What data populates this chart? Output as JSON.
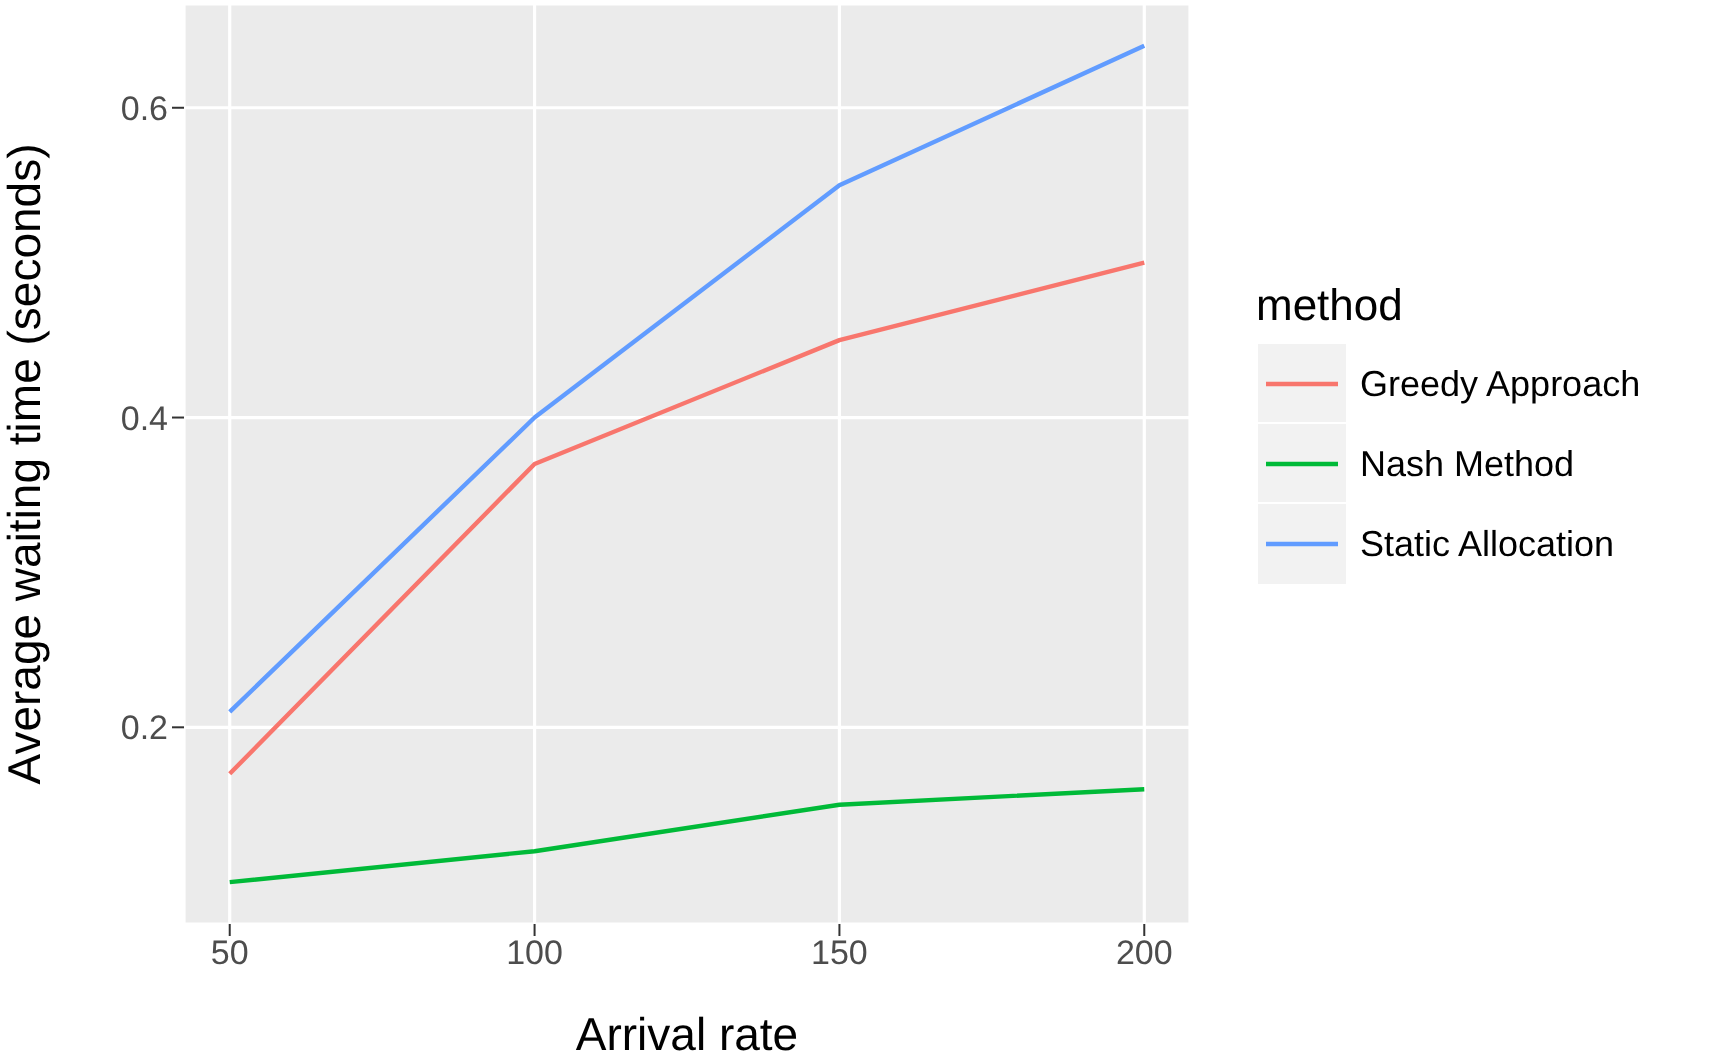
{
  "chart_data": {
    "type": "line",
    "xlabel": "Arrival rate",
    "ylabel": "Average waiting time (seconds)",
    "legend_title": "method",
    "x": [
      50,
      100,
      150,
      200
    ],
    "series": [
      {
        "name": "Greedy Approach",
        "color": "#f8766d",
        "values": [
          0.17,
          0.37,
          0.45,
          0.5
        ]
      },
      {
        "name": "Nash Method",
        "color": "#00ba38",
        "values": [
          0.1,
          0.12,
          0.15,
          0.16
        ]
      },
      {
        "name": "Static Allocation",
        "color": "#619cff",
        "values": [
          0.21,
          0.4,
          0.55,
          0.64
        ]
      }
    ],
    "xlim": [
      42.5,
      207.5
    ],
    "ylim": [
      0.073,
      0.667
    ],
    "xticks": [
      50,
      100,
      150,
      200
    ],
    "yticks": [
      0.2,
      0.4,
      0.6
    ],
    "grid": true,
    "legend": "right",
    "marker": "none",
    "line_style": "solid"
  }
}
